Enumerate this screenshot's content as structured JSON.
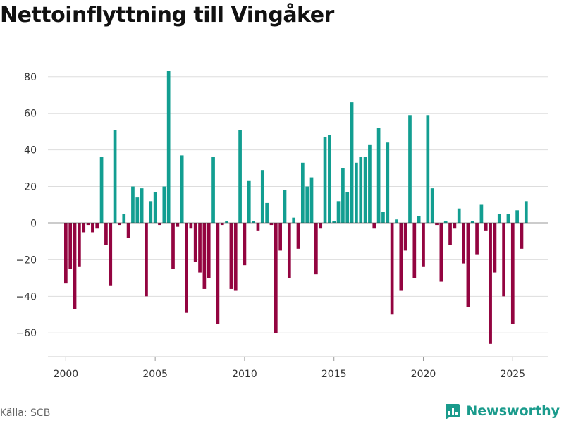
{
  "title": "Nettoinflyttning till Vingåker",
  "source": "Källa: SCB",
  "brand": {
    "name": "Newsworthy",
    "icon": "newsworthy-logo-icon"
  },
  "colors": {
    "positive": "#129e91",
    "negative": "#930440",
    "grid": "#dddddd",
    "zero": "#333333",
    "brand": "#1a9b8c"
  },
  "chart_data": {
    "type": "bar",
    "title": "Nettoinflyttning till Vingåker",
    "xlabel": "",
    "ylabel": "",
    "ylim": [
      -73,
      88
    ],
    "xlim": [
      1999.0,
      2027.0
    ],
    "yticks": [
      -60,
      -40,
      -20,
      0,
      20,
      40,
      60,
      80
    ],
    "ytick_labels": [
      "−60",
      "−40",
      "−20",
      "0",
      "20",
      "40",
      "60",
      "80"
    ],
    "xticks": [
      2000,
      2005,
      2010,
      2015,
      2020,
      2025
    ],
    "xtick_labels": [
      "2000",
      "2005",
      "2010",
      "2015",
      "2020",
      "2025"
    ],
    "start": 2000.0,
    "step": 0.25,
    "frequency": "quarterly",
    "values": [
      -33,
      -25,
      -47,
      -24,
      -5,
      -1,
      -5,
      -3,
      36,
      -12,
      -34,
      51,
      -1,
      5,
      -8,
      20,
      14,
      19,
      -40,
      12,
      17,
      -1,
      20,
      83,
      -25,
      -2,
      37,
      -49,
      -3,
      -21,
      -27,
      -36,
      -30,
      36,
      -55,
      -1,
      1,
      -36,
      -37,
      51,
      -23,
      23,
      1,
      -4,
      29,
      11,
      -1,
      -60,
      -15,
      18,
      -30,
      3,
      -14,
      33,
      20,
      25,
      -28,
      -3,
      47,
      48,
      1,
      12,
      30,
      17,
      66,
      33,
      36,
      36,
      43,
      -3,
      52,
      6,
      44,
      -50,
      2,
      -37,
      -15,
      59,
      -30,
      4,
      -24,
      59,
      19,
      -1,
      -32,
      1,
      -12,
      -3,
      8,
      -22,
      -46,
      1,
      -17,
      10,
      -4,
      -66,
      -27,
      5,
      -40,
      5,
      -55,
      7,
      -14,
      12
    ]
  }
}
